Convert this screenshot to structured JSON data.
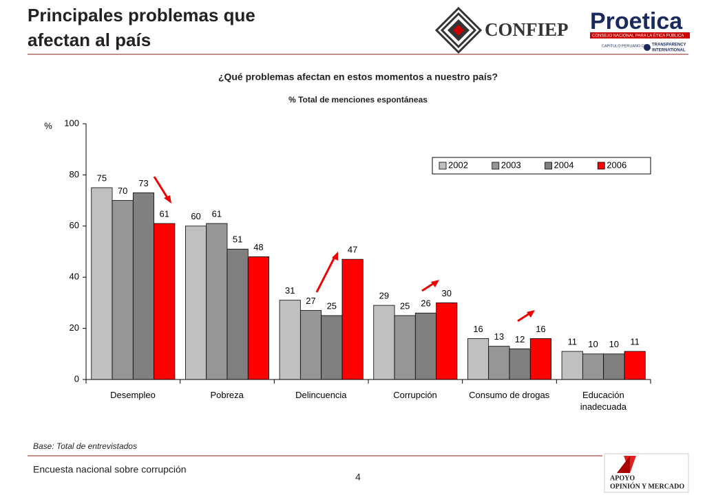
{
  "header": {
    "title_lines": [
      "Principales problemas que",
      "afectan al país"
    ],
    "logos": {
      "confiep": "CONFIEP",
      "proetica": "Proetica",
      "proetica_sub": "CONSEJO NACIONAL PARA LA ÉTICA PÚBLICA",
      "chapter": "CAPÍTULO PERUANO DE:",
      "ti": [
        "TRANSPARENCY",
        "INTERNATIONAL"
      ]
    }
  },
  "chart_data": {
    "type": "bar",
    "title": "¿Qué problemas afectan en estos momentos a nuestro país?",
    "subtitle": "% Total de menciones espontáneas",
    "y_label": "%",
    "categories": [
      "Desempleo",
      "Pobreza",
      "Delincuencia",
      "Corrupción",
      "Consumo de drogas",
      "Educación\ninadecuada"
    ],
    "series": [
      {
        "name": "2002",
        "color": "#c0c0c0",
        "values": [
          75,
          60,
          31,
          29,
          16,
          11
        ]
      },
      {
        "name": "2003",
        "color": "#969696",
        "values": [
          70,
          61,
          27,
          25,
          13,
          10
        ]
      },
      {
        "name": "2004",
        "color": "#808080",
        "values": [
          73,
          51,
          25,
          26,
          12,
          10
        ]
      },
      {
        "name": "2006",
        "color": "#ff0000",
        "values": [
          61,
          48,
          47,
          30,
          16,
          11
        ]
      }
    ],
    "ylim": [
      0,
      100
    ],
    "yticks": [
      0,
      20,
      40,
      60,
      80,
      100
    ],
    "legend": "upper right"
  },
  "footer": {
    "base": "Base: Total de entrevistados",
    "survey": "Encuesta nacional sobre corrupción",
    "page": "4",
    "apoyo": [
      "APOYO",
      "OPINIÓN Y MERCADO"
    ]
  }
}
